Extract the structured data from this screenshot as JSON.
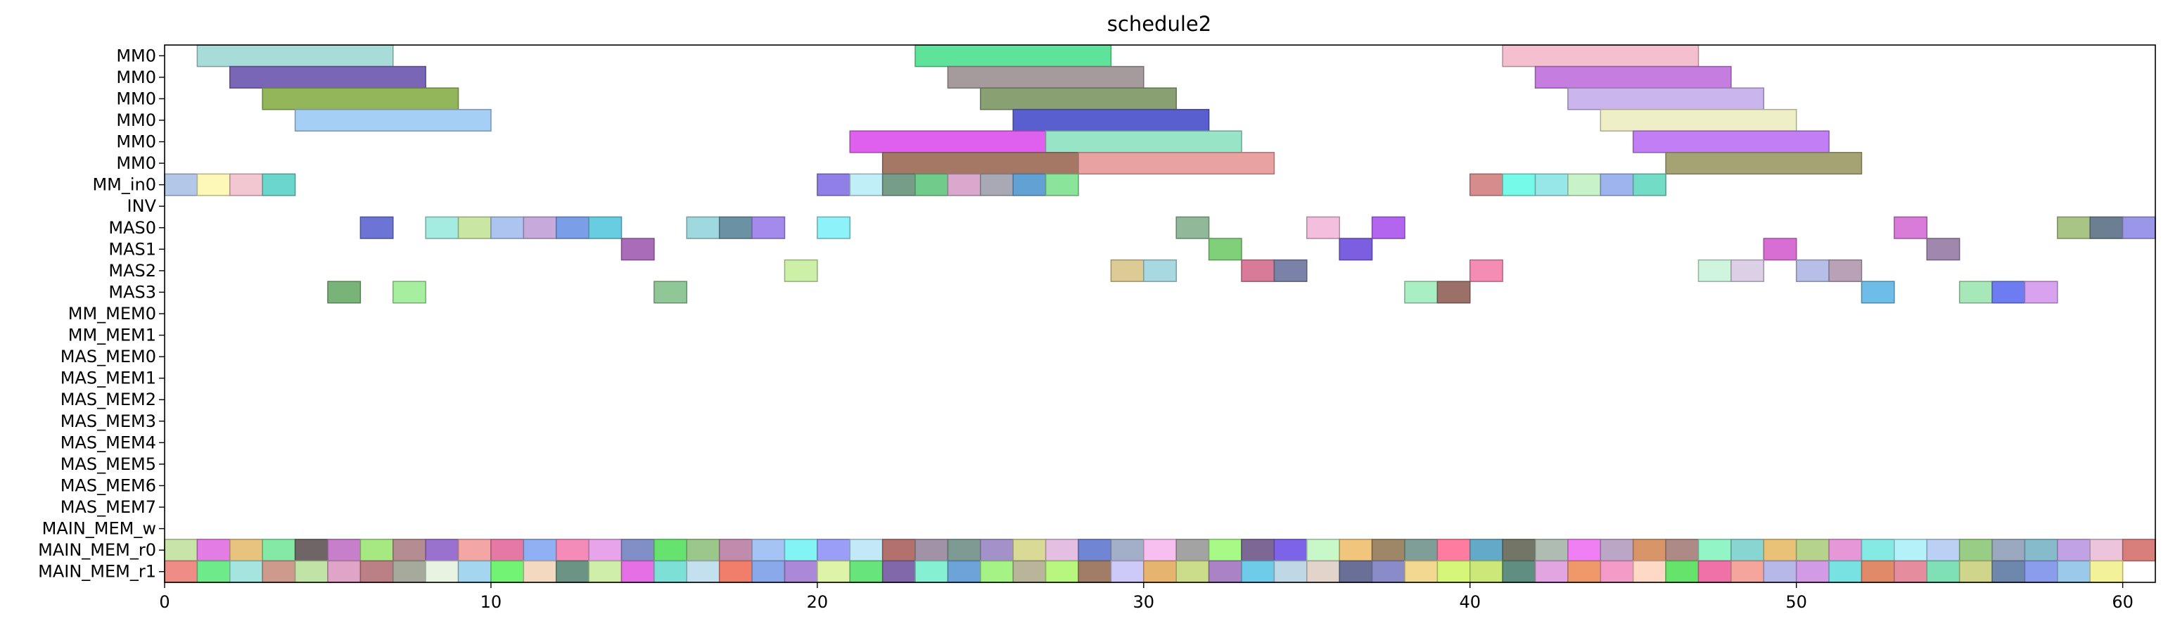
{
  "chart_data": {
    "type": "gantt",
    "title": "schedule2",
    "xlabel": "",
    "ylabel": "",
    "xlim": [
      0,
      61
    ],
    "x_ticks": [
      0,
      10,
      20,
      30,
      40,
      50,
      60
    ],
    "x_tick_labels": [
      "0",
      "10",
      "20",
      "30",
      "40",
      "50",
      "60"
    ],
    "grid": false,
    "rows": [
      "MM0",
      "MM0",
      "MM0",
      "MM0",
      "MM0",
      "MM0",
      "MM_in0",
      "INV",
      "MAS0",
      "MAS1",
      "MAS2",
      "MAS3",
      "MM_MEM0",
      "MM_MEM1",
      "MAS_MEM0",
      "MAS_MEM1",
      "MAS_MEM2",
      "MAS_MEM3",
      "MAS_MEM4",
      "MAS_MEM5",
      "MAS_MEM6",
      "MAS_MEM7",
      "MAIN_MEM_w",
      "MAIN_MEM_r0",
      "MAIN_MEM_r1"
    ],
    "tasks": [
      {
        "row": 0,
        "start": 1,
        "end": 7,
        "color": "#a8dcd8"
      },
      {
        "row": 0,
        "start": 23,
        "end": 29,
        "color": "#5fe39a"
      },
      {
        "row": 0,
        "start": 41,
        "end": 47,
        "color": "#f4c0cf"
      },
      {
        "row": 1,
        "start": 2,
        "end": 8,
        "color": "#7a66b6"
      },
      {
        "row": 1,
        "start": 24,
        "end": 30,
        "color": "#a59a9c"
      },
      {
        "row": 1,
        "start": 42,
        "end": 48,
        "color": "#c57ddf"
      },
      {
        "row": 2,
        "start": 3,
        "end": 9,
        "color": "#93b65a"
      },
      {
        "row": 2,
        "start": 25,
        "end": 31,
        "color": "#88a072"
      },
      {
        "row": 2,
        "start": 43,
        "end": 49,
        "color": "#cab5ed"
      },
      {
        "row": 3,
        "start": 4,
        "end": 10,
        "color": "#a6cff5"
      },
      {
        "row": 3,
        "start": 26,
        "end": 32,
        "color": "#5a5fd0"
      },
      {
        "row": 3,
        "start": 44,
        "end": 50,
        "color": "#eeefc6"
      },
      {
        "row": 4,
        "start": 21,
        "end": 27,
        "color": "#e060ee"
      },
      {
        "row": 4,
        "start": 27,
        "end": 33,
        "color": "#98e4c6"
      },
      {
        "row": 4,
        "start": 45,
        "end": 51,
        "color": "#c27ff5"
      },
      {
        "row": 5,
        "start": 22,
        "end": 28,
        "color": "#a57866"
      },
      {
        "row": 5,
        "start": 28,
        "end": 34,
        "color": "#e8a2a2"
      },
      {
        "row": 5,
        "start": 46,
        "end": 52,
        "color": "#a5a373"
      },
      {
        "row": 6,
        "start": 0,
        "end": 1,
        "color": "#b3c8e9"
      },
      {
        "row": 6,
        "start": 1,
        "end": 2,
        "color": "#fdf7b8"
      },
      {
        "row": 6,
        "start": 2,
        "end": 3,
        "color": "#f2c7d2"
      },
      {
        "row": 6,
        "start": 3,
        "end": 4,
        "color": "#6bd6cc"
      },
      {
        "row": 6,
        "start": 20,
        "end": 21,
        "color": "#8f7fe6"
      },
      {
        "row": 6,
        "start": 21,
        "end": 22,
        "color": "#c1eff7"
      },
      {
        "row": 6,
        "start": 22,
        "end": 23,
        "color": "#759d88"
      },
      {
        "row": 6,
        "start": 23,
        "end": 24,
        "color": "#6fcc8a"
      },
      {
        "row": 6,
        "start": 24,
        "end": 25,
        "color": "#dba8cd"
      },
      {
        "row": 6,
        "start": 25,
        "end": 26,
        "color": "#a9a9b6"
      },
      {
        "row": 6,
        "start": 26,
        "end": 27,
        "color": "#62a1d4"
      },
      {
        "row": 6,
        "start": 27,
        "end": 28,
        "color": "#8ae49a"
      },
      {
        "row": 6,
        "start": 40,
        "end": 41,
        "color": "#d68c8c"
      },
      {
        "row": 6,
        "start": 41,
        "end": 42,
        "color": "#75f9e8"
      },
      {
        "row": 6,
        "start": 42,
        "end": 43,
        "color": "#96e8e6"
      },
      {
        "row": 6,
        "start": 43,
        "end": 44,
        "color": "#c8f2c8"
      },
      {
        "row": 6,
        "start": 44,
        "end": 45,
        "color": "#9db4ee"
      },
      {
        "row": 6,
        "start": 45,
        "end": 46,
        "color": "#73dcc6"
      },
      {
        "row": 8,
        "start": 6,
        "end": 7,
        "color": "#6c74d6"
      },
      {
        "row": 8,
        "start": 8,
        "end": 9,
        "color": "#a4ebe1"
      },
      {
        "row": 8,
        "start": 9,
        "end": 10,
        "color": "#c9e6a3"
      },
      {
        "row": 8,
        "start": 10,
        "end": 11,
        "color": "#adc4f1"
      },
      {
        "row": 8,
        "start": 11,
        "end": 12,
        "color": "#c7a9dc"
      },
      {
        "row": 8,
        "start": 12,
        "end": 13,
        "color": "#7a9ee8"
      },
      {
        "row": 8,
        "start": 13,
        "end": 14,
        "color": "#68cde0"
      },
      {
        "row": 8,
        "start": 16,
        "end": 17,
        "color": "#9fd9df"
      },
      {
        "row": 8,
        "start": 17,
        "end": 18,
        "color": "#6b91a5"
      },
      {
        "row": 8,
        "start": 18,
        "end": 19,
        "color": "#a58aed"
      },
      {
        "row": 8,
        "start": 20,
        "end": 21,
        "color": "#8ef2fa"
      },
      {
        "row": 8,
        "start": 31,
        "end": 32,
        "color": "#92b89a"
      },
      {
        "row": 8,
        "start": 35,
        "end": 36,
        "color": "#f4bede"
      },
      {
        "row": 8,
        "start": 37,
        "end": 38,
        "color": "#b365ef"
      },
      {
        "row": 8,
        "start": 53,
        "end": 54,
        "color": "#d97bd8"
      },
      {
        "row": 8,
        "start": 58,
        "end": 59,
        "color": "#a9c585"
      },
      {
        "row": 8,
        "start": 59,
        "end": 60,
        "color": "#6c7f92"
      },
      {
        "row": 8,
        "start": 60,
        "end": 61,
        "color": "#9b97e8"
      },
      {
        "row": 9,
        "start": 14,
        "end": 15,
        "color": "#a86cb8"
      },
      {
        "row": 9,
        "start": 32,
        "end": 33,
        "color": "#80d07a"
      },
      {
        "row": 9,
        "start": 36,
        "end": 37,
        "color": "#7c5ee0"
      },
      {
        "row": 9,
        "start": 49,
        "end": 50,
        "color": "#d86ed3"
      },
      {
        "row": 9,
        "start": 54,
        "end": 55,
        "color": "#9f87ad"
      },
      {
        "row": 10,
        "start": 19,
        "end": 20,
        "color": "#cdf0a8"
      },
      {
        "row": 10,
        "start": 29,
        "end": 30,
        "color": "#dccb94"
      },
      {
        "row": 10,
        "start": 30,
        "end": 31,
        "color": "#a9d9e0"
      },
      {
        "row": 10,
        "start": 33,
        "end": 34,
        "color": "#d97a98"
      },
      {
        "row": 10,
        "start": 34,
        "end": 35,
        "color": "#7a83a7"
      },
      {
        "row": 10,
        "start": 40,
        "end": 41,
        "color": "#f58cb3"
      },
      {
        "row": 10,
        "start": 47,
        "end": 48,
        "color": "#cff5df"
      },
      {
        "row": 10,
        "start": 48,
        "end": 49,
        "color": "#dcd0e6"
      },
      {
        "row": 10,
        "start": 50,
        "end": 51,
        "color": "#b7bfe8"
      },
      {
        "row": 10,
        "start": 51,
        "end": 52,
        "color": "#b9a1b8"
      },
      {
        "row": 11,
        "start": 5,
        "end": 6,
        "color": "#78b378"
      },
      {
        "row": 11,
        "start": 7,
        "end": 8,
        "color": "#a6ef9e"
      },
      {
        "row": 11,
        "start": 15,
        "end": 16,
        "color": "#8fc796"
      },
      {
        "row": 11,
        "start": 38,
        "end": 39,
        "color": "#a9efc3"
      },
      {
        "row": 11,
        "start": 39,
        "end": 40,
        "color": "#9a7068"
      },
      {
        "row": 11,
        "start": 52,
        "end": 53,
        "color": "#6dbde8"
      },
      {
        "row": 11,
        "start": 55,
        "end": 56,
        "color": "#a6e8b7"
      },
      {
        "row": 11,
        "start": 56,
        "end": 57,
        "color": "#6d7cf0"
      },
      {
        "row": 11,
        "start": 57,
        "end": 58,
        "color": "#d8a2ef"
      }
    ],
    "row23_colors": [
      "#c9e4a8",
      "#e47ce6",
      "#e8c37d",
      "#85e9a6",
      "#6f6566",
      "#c77fcc",
      "#a7e981",
      "#b48c91",
      "#9b71d0",
      "#f3a6a3",
      "#e678a5",
      "#8fb0f5",
      "#f58bb8",
      "#e7a4ea",
      "#818fc9",
      "#66e36e",
      "#9cc78a",
      "#c08bac",
      "#a6c3f5",
      "#82f4f5",
      "#9a9ef6",
      "#c2e9f7",
      "#b3716e",
      "#a292a8",
      "#7d9b93",
      "#a392c9",
      "#d8da95",
      "#e4bfe3",
      "#7086d4",
      "#a3afc8",
      "#f6bfef",
      "#a4a3a3",
      "#a7fa85",
      "#7d6895",
      "#7d63e8",
      "#c8f8c7",
      "#f2c57d",
      "#9d8767",
      "#7f9e98",
      "#fd7c9f",
      "#63aac8",
      "#737567",
      "#aebcb2",
      "#f17ef4",
      "#bba6c8",
      "#d79568",
      "#ae8a86",
      "#92f5c5",
      "#87d6d2",
      "#e9c177",
      "#b6d38c",
      "#e697d8",
      "#85eae4",
      "#b4f2fa",
      "#bad0f4",
      "#97cd84",
      "#9ba9c0",
      "#86bbcc",
      "#c1a2e5",
      "#ecc5dc",
      "#d87f7c"
    ],
    "row24_colors": [
      "#f08c86",
      "#6fea8a",
      "#a4e5e0",
      "#cd9a8c",
      "#c0e3a6",
      "#e0a4c8",
      "#bb8085",
      "#a6aa9c",
      "#e8f3e2",
      "#a4d6ef",
      "#73f373",
      "#f3d9c0",
      "#6b9484",
      "#cfeeaa",
      "#e56fe5",
      "#7ce0d6",
      "#c2e0ed",
      "#f07e6a",
      "#8aa9eb",
      "#ab88d8",
      "#ddf4a8",
      "#68e57a",
      "#8168aa",
      "#86f0d2",
      "#6ca3d9",
      "#a5f285",
      "#b9b59b",
      "#b7f77d",
      "#a17d67",
      "#cdc9f8",
      "#e6b46f",
      "#cbdd8a",
      "#aa83c6",
      "#6ecbea",
      "#bfd8e6",
      "#e3d4cb",
      "#6a6f97",
      "#8a8cc9",
      "#f3d88f",
      "#d6f67a",
      "#cce878",
      "#5f8f81",
      "#e2a5e1",
      "#ef996b",
      "#f59bc8",
      "#fed9c5",
      "#66e36b",
      "#f070a8",
      "#f5a59c",
      "#b6b8e8",
      "#d39be5",
      "#77e2e1",
      "#e08a6a",
      "#e68c9f",
      "#7fe0b6",
      "#cfd68c",
      "#6e88ad",
      "#8a9cec",
      "#9ac9ea",
      "#f3f29a"
    ]
  }
}
